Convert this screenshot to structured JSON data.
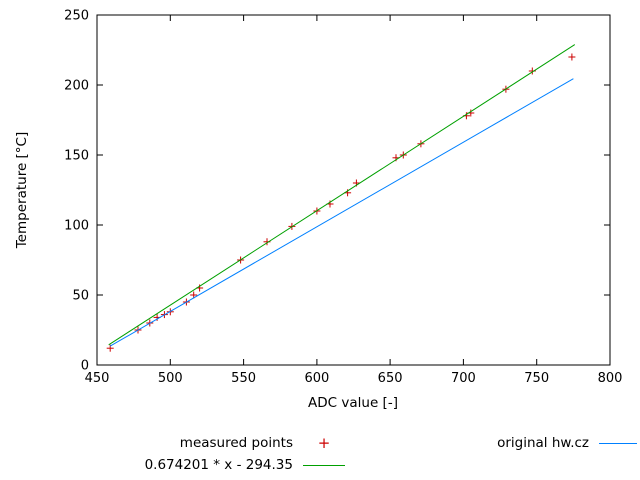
{
  "page": {
    "background": "#ffffff"
  },
  "chart_data": {
    "type": "scatter",
    "title": "",
    "xlabel": "ADC value [-]",
    "ylabel": "Temperature [°C]",
    "xlim": [
      450,
      800
    ],
    "ylim": [
      0,
      250
    ],
    "xticks": [
      450,
      500,
      550,
      600,
      650,
      700,
      750,
      800
    ],
    "yticks": [
      0,
      50,
      100,
      150,
      200,
      250
    ],
    "grid": false,
    "legend_position": "below-plot",
    "series": [
      {
        "name": "measured points",
        "style": "points",
        "marker": "plus",
        "color": "#cc0000",
        "points": [
          [
            459,
            12
          ],
          [
            478,
            25
          ],
          [
            486,
            30
          ],
          [
            491,
            34
          ],
          [
            496,
            36
          ],
          [
            500,
            38
          ],
          [
            511,
            45
          ],
          [
            516,
            50
          ],
          [
            520,
            55
          ],
          [
            548,
            75
          ],
          [
            566,
            88
          ],
          [
            583,
            99
          ],
          [
            600,
            110
          ],
          [
            609,
            115
          ],
          [
            621,
            123
          ],
          [
            627,
            130
          ],
          [
            654,
            148
          ],
          [
            659,
            150
          ],
          [
            671,
            158
          ],
          [
            702,
            178
          ],
          [
            705,
            180
          ],
          [
            729,
            197
          ],
          [
            747,
            210
          ],
          [
            774,
            220
          ]
        ]
      },
      {
        "name": "0.674201 * x - 294.35",
        "style": "line",
        "color": "#00a000",
        "slope": 0.674201,
        "intercept": -294.35,
        "x_range": [
          458,
          776
        ]
      },
      {
        "name": "original hw.cz",
        "style": "line",
        "color": "#0080ff",
        "points": [
          [
            459,
            13.5
          ],
          [
            775,
            204.5
          ]
        ]
      }
    ]
  }
}
